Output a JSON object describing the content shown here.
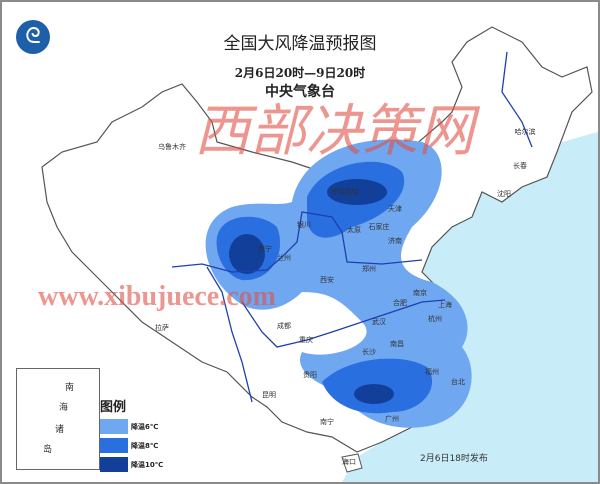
{
  "header": {
    "title": "全国大风降温预报图",
    "period": "2月6日20时—9日20时",
    "issuer": "中央气象台",
    "logo_icon": "cma-logo-icon"
  },
  "cities": [
    "乌鲁木齐",
    "哈尔滨",
    "长春",
    "沈阳",
    "呼和浩特",
    "银川",
    "太原",
    "石家庄",
    "天津",
    "济南",
    "西宁",
    "兰州",
    "郑州",
    "西安",
    "合肥",
    "南京",
    "上海",
    "杭州",
    "武汉",
    "成都",
    "重庆",
    "拉萨",
    "长沙",
    "南昌",
    "福州",
    "台北",
    "贵阳",
    "昆明",
    "南宁",
    "广州",
    "海口"
  ],
  "inset": {
    "label_chars": [
      "南",
      "海",
      "诸",
      "岛"
    ]
  },
  "legend": {
    "title": "图例",
    "items": [
      {
        "label": "降温6℃",
        "color": "#6fa8f0"
      },
      {
        "label": "降温8℃",
        "color": "#2a6fe0"
      },
      {
        "label": "降温10℃",
        "color": "#123f9a"
      }
    ]
  },
  "colors": {
    "sea": "#c8ecf8",
    "river": "#1f3fb0",
    "border": "#555555"
  },
  "watermark": {
    "text": "西部决策网",
    "url": "www.xibujuece.com"
  },
  "footer": {
    "issued": "2月6日18时发布"
  }
}
